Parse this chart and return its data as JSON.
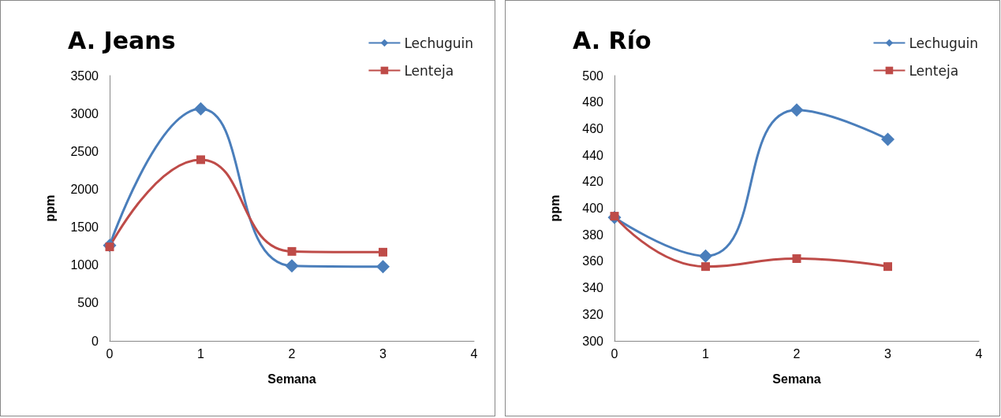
{
  "chart_data": [
    {
      "type": "line",
      "title": "A. Jeans",
      "xlabel": "Semana",
      "ylabel": "ppm",
      "xlim": [
        0,
        4
      ],
      "xticks": [
        0,
        1,
        2,
        3,
        4
      ],
      "ylim": [
        0,
        3500
      ],
      "yticks": [
        0,
        500,
        1000,
        1500,
        2000,
        2500,
        3000,
        3500
      ],
      "grid": false,
      "legend": "top right",
      "series": [
        {
          "name": "Lechuguin",
          "color": "#4a7ebb",
          "marker": "diamond",
          "x": [
            0,
            1,
            2,
            3
          ],
          "values": [
            1260,
            3060,
            990,
            980
          ]
        },
        {
          "name": "Lenteja",
          "color": "#be4b48",
          "marker": "square",
          "x": [
            0,
            1,
            2,
            3
          ],
          "values": [
            1240,
            2390,
            1180,
            1170
          ]
        }
      ]
    },
    {
      "type": "line",
      "title": "A. Río",
      "xlabel": "Semana",
      "ylabel": "ppm",
      "xlim": [
        0,
        4
      ],
      "xticks": [
        0,
        1,
        2,
        3,
        4
      ],
      "ylim": [
        300,
        500
      ],
      "yticks": [
        300,
        320,
        340,
        360,
        380,
        400,
        420,
        440,
        460,
        480,
        500
      ],
      "grid": false,
      "legend": "top right",
      "series": [
        {
          "name": "Lechuguin",
          "color": "#4a7ebb",
          "marker": "diamond",
          "x": [
            0,
            1,
            2,
            3
          ],
          "values": [
            393,
            364,
            474,
            452
          ]
        },
        {
          "name": "Lenteja",
          "color": "#be4b48",
          "marker": "square",
          "x": [
            0,
            1,
            2,
            3
          ],
          "values": [
            394,
            356,
            362,
            356
          ]
        }
      ]
    }
  ]
}
